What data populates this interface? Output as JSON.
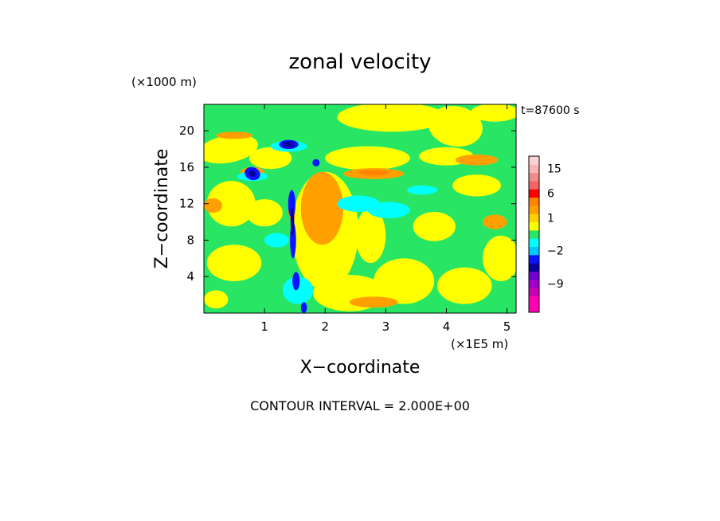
{
  "chart_data": {
    "type": "heatmap",
    "title": "zonal velocity",
    "xlabel": "X−coordinate",
    "ylabel": "Z−coordinate",
    "x_unit": "(×1E5 m)",
    "y_unit": "(×1000 m)",
    "time_label": "t=87600 s",
    "xlim": [
      0,
      5.15
    ],
    "ylim": [
      0,
      22.9
    ],
    "x_ticks": [
      1,
      2,
      3,
      4,
      5
    ],
    "y_ticks": [
      4,
      8,
      12,
      16,
      20
    ],
    "footer": "CONTOUR INTERVAL = 2.000E+00",
    "colorbar": {
      "levels": [
        {
          "value": -15,
          "color": "#ff00b4"
        },
        {
          "value": -13,
          "color": "#ff00b4"
        },
        {
          "value": -11,
          "color": "#c800b4"
        },
        {
          "value": -9,
          "color": "#a000c8"
        },
        {
          "value": -7,
          "color": "#6e00d2"
        },
        {
          "value": -5,
          "color": "#0a00a0"
        },
        {
          "value": -3,
          "color": "#0a14ff"
        },
        {
          "value": -2,
          "color": "#00c8ff"
        },
        {
          "value": -1,
          "color": "#00ffff"
        },
        {
          "value": 0,
          "color": "#28e664"
        },
        {
          "value": 0.5,
          "color": "#ffff00"
        },
        {
          "value": 1,
          "color": "#ffd200"
        },
        {
          "value": 2,
          "color": "#ffa000"
        },
        {
          "value": 4,
          "color": "#ff8200"
        },
        {
          "value": 6,
          "color": "#ff0000"
        },
        {
          "value": 9,
          "color": "#f06464"
        },
        {
          "value": 12,
          "color": "#f08c8c"
        },
        {
          "value": 15,
          "color": "#fab4b4"
        },
        {
          "value": 18,
          "color": "#fad2d2"
        }
      ],
      "labels": [
        {
          "value": 15,
          "text": "15"
        },
        {
          "value": 6,
          "text": "6"
        },
        {
          "value": 1,
          "text": "1"
        },
        {
          "value": -2,
          "text": "−2"
        },
        {
          "value": -9,
          "text": "−9"
        }
      ]
    },
    "background_level": 0,
    "regions": [
      {
        "level": 0.5,
        "cx": 3.1,
        "cz": 21.5,
        "rx": 0.9,
        "rz": 1.6,
        "rot": 0
      },
      {
        "level": 0.5,
        "cx": 4.15,
        "cz": 20.5,
        "rx": 0.45,
        "rz": 2.2,
        "rot": 10
      },
      {
        "level": 0.5,
        "cx": 4.8,
        "cz": 22.0,
        "rx": 0.4,
        "rz": 1.0,
        "rot": 0
      },
      {
        "level": 0.5,
        "cx": 2.0,
        "cz": 9.0,
        "rx": 0.55,
        "rz": 6.5,
        "rot": 0
      },
      {
        "level": 0.5,
        "cx": 0.45,
        "cz": 12.0,
        "rx": 0.4,
        "rz": 2.5,
        "rot": 0
      },
      {
        "level": 0.5,
        "cx": 0.5,
        "cz": 5.5,
        "rx": 0.45,
        "rz": 2.0,
        "rot": 0
      },
      {
        "level": 0.5,
        "cx": 0.4,
        "cz": 18.0,
        "rx": 0.5,
        "rz": 1.5,
        "rot": -10
      },
      {
        "level": 0.5,
        "cx": 1.1,
        "cz": 17.0,
        "rx": 0.35,
        "rz": 1.2,
        "rot": 0
      },
      {
        "level": 0.5,
        "cx": 2.7,
        "cz": 17.0,
        "rx": 0.7,
        "rz": 1.3,
        "rot": 0
      },
      {
        "level": 0.5,
        "cx": 2.4,
        "cz": 2.2,
        "rx": 0.6,
        "rz": 2.0,
        "rot": 0
      },
      {
        "level": 0.5,
        "cx": 3.3,
        "cz": 3.5,
        "rx": 0.5,
        "rz": 2.5,
        "rot": 0
      },
      {
        "level": 0.5,
        "cx": 4.3,
        "cz": 3.0,
        "rx": 0.45,
        "rz": 2.0,
        "rot": 0
      },
      {
        "level": 0.5,
        "cx": 4.9,
        "cz": 6.0,
        "rx": 0.3,
        "rz": 2.5,
        "rot": 0
      },
      {
        "level": 0.5,
        "cx": 3.8,
        "cz": 9.5,
        "rx": 0.35,
        "rz": 1.6,
        "rot": 0
      },
      {
        "level": 0.5,
        "cx": 4.5,
        "cz": 14.0,
        "rx": 0.4,
        "rz": 1.2,
        "rot": 0
      },
      {
        "level": 0.5,
        "cx": 4.0,
        "cz": 17.2,
        "rx": 0.45,
        "rz": 1.0,
        "rot": 0
      },
      {
        "level": 0.5,
        "cx": 0.2,
        "cz": 1.5,
        "rx": 0.2,
        "rz": 1.0,
        "rot": 0
      },
      {
        "level": 0.5,
        "cx": 1.0,
        "cz": 11.0,
        "rx": 0.3,
        "rz": 1.5,
        "rot": 0
      },
      {
        "level": 0.5,
        "cx": 2.75,
        "cz": 8.5,
        "rx": 0.25,
        "rz": 3.0,
        "rot": 0
      },
      {
        "level": 2,
        "cx": 1.95,
        "cz": 11.5,
        "rx": 0.35,
        "rz": 4.0,
        "rot": 0
      },
      {
        "level": 2,
        "cx": 2.8,
        "cz": 15.3,
        "rx": 0.5,
        "rz": 0.6,
        "rot": 0
      },
      {
        "level": 2,
        "cx": 4.5,
        "cz": 16.8,
        "rx": 0.35,
        "rz": 0.6,
        "rot": 0
      },
      {
        "level": 2,
        "cx": 0.15,
        "cz": 11.8,
        "rx": 0.15,
        "rz": 0.8,
        "rot": 0
      },
      {
        "level": 2,
        "cx": 0.8,
        "cz": 15.5,
        "rx": 0.2,
        "rz": 0.5,
        "rot": 0
      },
      {
        "level": 2,
        "cx": 0.5,
        "cz": 19.5,
        "rx": 0.3,
        "rz": 0.4,
        "rot": 0
      },
      {
        "level": 2,
        "cx": 2.8,
        "cz": 1.2,
        "rx": 0.4,
        "rz": 0.6,
        "rot": 0
      },
      {
        "level": 2,
        "cx": 4.8,
        "cz": 10.0,
        "rx": 0.2,
        "rz": 0.8,
        "rot": 0
      },
      {
        "level": 4,
        "cx": 1.45,
        "cz": 11.5,
        "rx": 0.06,
        "rz": 1.4,
        "rot": 0
      },
      {
        "level": 4,
        "cx": 2.8,
        "cz": 15.4,
        "rx": 0.25,
        "rz": 0.3,
        "rot": 0
      },
      {
        "level": -1,
        "cx": 1.55,
        "cz": 2.5,
        "rx": 0.25,
        "rz": 1.5,
        "rot": 0
      },
      {
        "level": -1,
        "cx": 2.55,
        "cz": 12.0,
        "rx": 0.35,
        "rz": 0.9,
        "rot": 0
      },
      {
        "level": -1,
        "cx": 3.05,
        "cz": 11.3,
        "rx": 0.35,
        "rz": 0.9,
        "rot": 0
      },
      {
        "level": -1,
        "cx": 0.8,
        "cz": 15.0,
        "rx": 0.25,
        "rz": 0.5,
        "rot": 0
      },
      {
        "level": -1,
        "cx": 1.4,
        "cz": 18.3,
        "rx": 0.3,
        "rz": 0.6,
        "rot": 0
      },
      {
        "level": -1,
        "cx": 1.2,
        "cz": 8.0,
        "rx": 0.2,
        "rz": 0.8,
        "rot": 0
      },
      {
        "level": -1,
        "cx": 3.6,
        "cz": 13.5,
        "rx": 0.25,
        "rz": 0.5,
        "rot": 0
      },
      {
        "level": -3,
        "cx": 1.4,
        "cz": 18.5,
        "rx": 0.16,
        "rz": 0.5,
        "rot": 0
      },
      {
        "level": -3,
        "cx": 0.8,
        "cz": 15.3,
        "rx": 0.13,
        "rz": 0.7,
        "rot": 20
      },
      {
        "level": -3,
        "cx": 1.45,
        "cz": 12.0,
        "rx": 0.06,
        "rz": 1.5,
        "rot": 0
      },
      {
        "level": -3,
        "cx": 1.47,
        "cz": 8.0,
        "rx": 0.05,
        "rz": 2.0,
        "rot": 0
      },
      {
        "level": -3,
        "cx": 1.52,
        "cz": 3.5,
        "rx": 0.06,
        "rz": 1.0,
        "rot": 0
      },
      {
        "level": -3,
        "cx": 1.65,
        "cz": 0.6,
        "rx": 0.05,
        "rz": 0.6,
        "rot": 0
      },
      {
        "level": -3,
        "cx": 1.85,
        "cz": 16.5,
        "rx": 0.06,
        "rz": 0.4,
        "rot": 0
      },
      {
        "level": -5,
        "cx": 1.4,
        "cz": 18.5,
        "rx": 0.1,
        "rz": 0.35,
        "rot": 0
      },
      {
        "level": -5,
        "cx": 0.8,
        "cz": 15.3,
        "rx": 0.06,
        "rz": 0.35,
        "rot": 20
      },
      {
        "level": -5,
        "cx": 1.46,
        "cz": 10.0,
        "rx": 0.03,
        "rz": 1.5,
        "rot": 0
      }
    ]
  }
}
